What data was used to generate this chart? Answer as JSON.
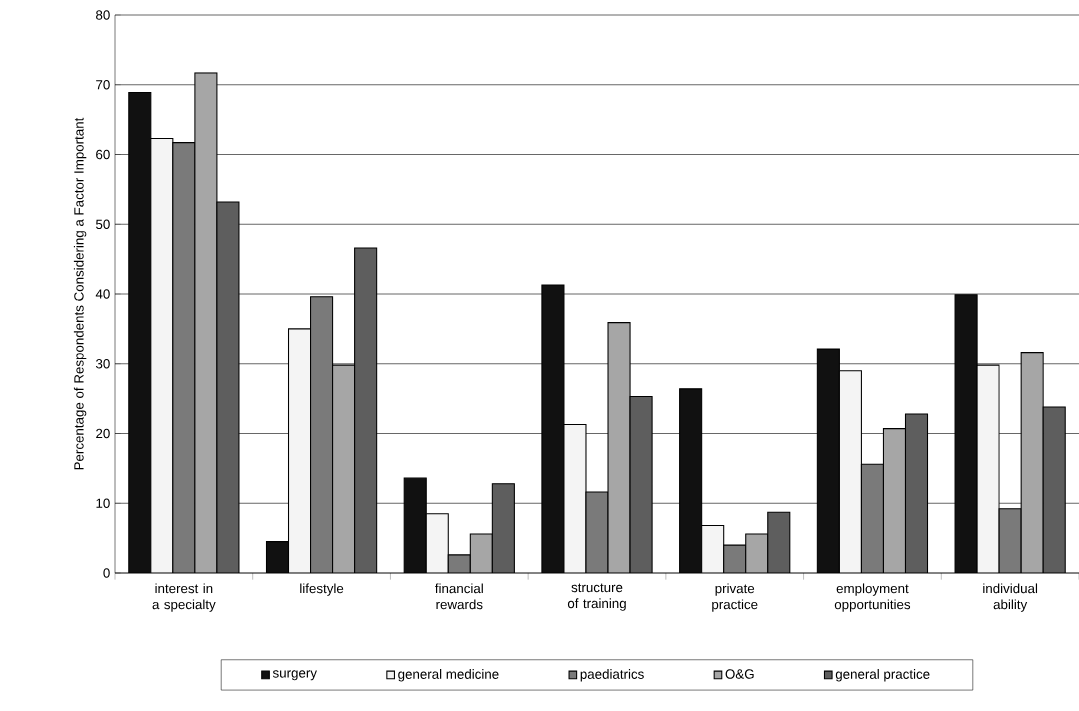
{
  "chart_data": {
    "type": "bar",
    "ylabel": "Percentage of Respondents Considering a Factor Important",
    "categories": [
      "interest in a specialty",
      "lifestyle",
      "financial rewards",
      "structure of training",
      "private practice",
      "employment opportunities",
      "individual ability"
    ],
    "series": [
      {
        "name": "surgery",
        "color": "#111111",
        "values": [
          68.9,
          4.5,
          13.6,
          41.3,
          26.4,
          32.1,
          39.9
        ]
      },
      {
        "name": "general medicine",
        "color": "#f4f4f4",
        "values": [
          62.3,
          35.0,
          8.5,
          21.3,
          6.8,
          29.0,
          29.8
        ]
      },
      {
        "name": "paediatrics",
        "color": "#7a7a7a",
        "values": [
          61.7,
          39.6,
          2.6,
          11.6,
          4.0,
          15.6,
          9.2
        ]
      },
      {
        "name": "O&G",
        "color": "#a6a6a6",
        "values": [
          71.7,
          29.8,
          5.6,
          35.9,
          5.6,
          20.7,
          31.6
        ]
      },
      {
        "name": "general practice",
        "color": "#5e5e5e",
        "values": [
          53.2,
          46.6,
          12.8,
          25.3,
          8.7,
          22.8,
          23.8
        ]
      }
    ],
    "ylim": [
      0,
      80
    ],
    "yticks": [
      0,
      10,
      20,
      30,
      40,
      50,
      60,
      70,
      80
    ],
    "grid": "y",
    "legend": "bottom"
  }
}
